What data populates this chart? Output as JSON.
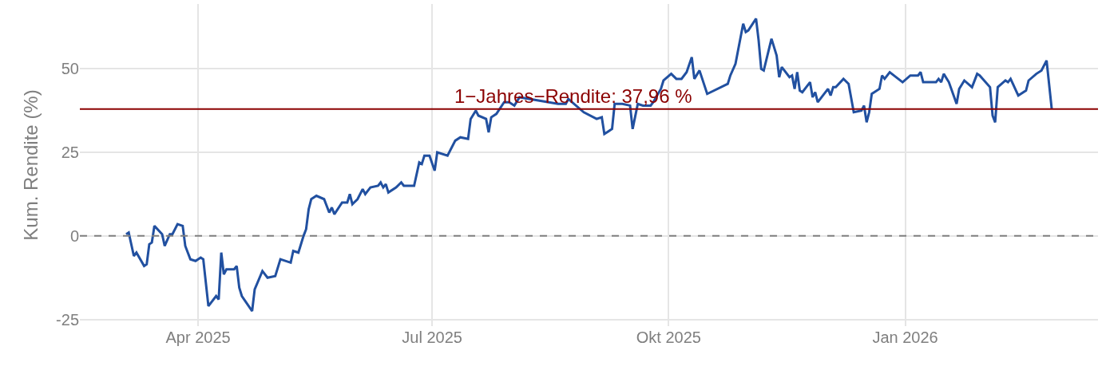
{
  "chart_data": {
    "type": "line",
    "ylabel": "Kum. Rendite (%)",
    "x": [
      "2025-03-04",
      "2025-03-05",
      "2025-03-07",
      "2025-03-08",
      "2025-03-11",
      "2025-03-12",
      "2025-03-13",
      "2025-03-14",
      "2025-03-15",
      "2025-03-18",
      "2025-03-19",
      "2025-03-21",
      "2025-03-22",
      "2025-03-24",
      "2025-03-26",
      "2025-03-27",
      "2025-03-29",
      "2025-03-31",
      "2025-04-02",
      "2025-04-03",
      "2025-04-05",
      "2025-04-08",
      "2025-04-09",
      "2025-04-10",
      "2025-04-11",
      "2025-04-12",
      "2025-04-15",
      "2025-04-16",
      "2025-04-17",
      "2025-04-18",
      "2025-04-22",
      "2025-04-23",
      "2025-04-26",
      "2025-04-28",
      "2025-05-01",
      "2025-05-03",
      "2025-05-07",
      "2025-05-08",
      "2025-05-10",
      "2025-05-12",
      "2025-05-13",
      "2025-05-14",
      "2025-05-15",
      "2025-05-17",
      "2025-05-20",
      "2025-05-22",
      "2025-05-23",
      "2025-05-24",
      "2025-05-27",
      "2025-05-29",
      "2025-05-30",
      "2025-05-31",
      "2025-06-02",
      "2025-06-04",
      "2025-06-05",
      "2025-06-07",
      "2025-06-10",
      "2025-06-11",
      "2025-06-12",
      "2025-06-13",
      "2025-06-14",
      "2025-06-17",
      "2025-06-19",
      "2025-06-20",
      "2025-06-24",
      "2025-06-26",
      "2025-06-27",
      "2025-06-28",
      "2025-06-30",
      "2025-07-02",
      "2025-07-03",
      "2025-07-07",
      "2025-07-10",
      "2025-07-12",
      "2025-07-15",
      "2025-07-16",
      "2025-07-18",
      "2025-07-19",
      "2025-07-22",
      "2025-07-23",
      "2025-07-24",
      "2025-07-26",
      "2025-07-29",
      "2025-07-31",
      "2025-08-02",
      "2025-08-04",
      "2025-08-19",
      "2025-08-22",
      "2025-08-23",
      "2025-08-29",
      "2025-09-03",
      "2025-09-05",
      "2025-09-06",
      "2025-09-09",
      "2025-09-10",
      "2025-09-13",
      "2025-09-16",
      "2025-09-17",
      "2025-09-19",
      "2025-09-21",
      "2025-09-24",
      "2025-09-25",
      "2025-09-28",
      "2025-09-29",
      "2025-10-02",
      "2025-10-04",
      "2025-10-06",
      "2025-10-08",
      "2025-10-10",
      "2025-10-11",
      "2025-10-13",
      "2025-10-16",
      "2025-10-24",
      "2025-10-25",
      "2025-10-27",
      "2025-10-30",
      "2025-10-31",
      "2025-11-01",
      "2025-11-04",
      "2025-11-05",
      "2025-11-06",
      "2025-11-07",
      "2025-11-10",
      "2025-11-12",
      "2025-11-13",
      "2025-11-14",
      "2025-11-17",
      "2025-11-18",
      "2025-11-19",
      "2025-11-20",
      "2025-11-21",
      "2025-11-22",
      "2025-11-25",
      "2025-11-26",
      "2025-11-27",
      "2025-11-28",
      "2025-12-02",
      "2025-12-03",
      "2025-12-04",
      "2025-12-05",
      "2025-12-08",
      "2025-12-10",
      "2025-12-12",
      "2025-12-15",
      "2025-12-16",
      "2025-12-17",
      "2025-12-18",
      "2025-12-19",
      "2025-12-22",
      "2025-12-23",
      "2025-12-24",
      "2025-12-26",
      "2025-12-31",
      "2026-01-03",
      "2026-01-06",
      "2026-01-07",
      "2026-01-08",
      "2026-01-13",
      "2026-01-14",
      "2026-01-15",
      "2026-01-16",
      "2026-01-18",
      "2026-01-21",
      "2026-01-22",
      "2026-01-24",
      "2026-01-27",
      "2026-01-29",
      "2026-01-30",
      "2026-02-03",
      "2026-02-04",
      "2026-02-05",
      "2026-02-06",
      "2026-02-09",
      "2026-02-10",
      "2026-02-11",
      "2026-02-14",
      "2026-02-17",
      "2026-02-18",
      "2026-02-21",
      "2026-02-23",
      "2026-02-25",
      "2026-02-27"
    ],
    "series": [
      {
        "color": "#2150a0",
        "values": [
          0.5,
          1,
          -6,
          -5,
          -9,
          -8.5,
          -2.5,
          -2,
          3,
          0.5,
          -3,
          0.5,
          0.5,
          3.5,
          3,
          -3,
          -7,
          -7.5,
          -6.5,
          -7,
          -21,
          -18,
          -19,
          -5,
          -11.5,
          -10,
          -10,
          -9,
          -15.5,
          -18,
          -22.5,
          -16,
          -10.5,
          -12.5,
          -12,
          -7,
          -8,
          -4.5,
          -5,
          0,
          2,
          8,
          11,
          12,
          11,
          7,
          8.5,
          6.5,
          10,
          10,
          12.5,
          9.5,
          11,
          14,
          12.5,
          14.5,
          15,
          16,
          14.5,
          15.5,
          13,
          14.5,
          16,
          15,
          15,
          22,
          21.5,
          24,
          24,
          19.5,
          25,
          24,
          28.5,
          29.5,
          29,
          35,
          37.5,
          36,
          35,
          31,
          35.5,
          36.5,
          40,
          40,
          39,
          41.5,
          39.5,
          39.5,
          41,
          37,
          35,
          35.5,
          30.5,
          32,
          39.5,
          39.5,
          39,
          32,
          39.5,
          39,
          39,
          40,
          44,
          46.5,
          48.5,
          47,
          47,
          49,
          53.5,
          47,
          49.5,
          42.5,
          45.5,
          48,
          51.5,
          63.5,
          61,
          61.5,
          65,
          58.5,
          50,
          49.5,
          59,
          54,
          47.5,
          50.5,
          47.5,
          48,
          44,
          49,
          43.5,
          43,
          46,
          41.5,
          43,
          40,
          44,
          42,
          44.5,
          44.5,
          47,
          45.5,
          37,
          37.5,
          39,
          34,
          37,
          42.5,
          44,
          48,
          47,
          49,
          46,
          48,
          48,
          49,
          46,
          46,
          47,
          46,
          48.5,
          46,
          39.5,
          44,
          46.5,
          44.5,
          48.5,
          48,
          44.5,
          36,
          34,
          44.5,
          46.5,
          46,
          47,
          42,
          43.5,
          46.5,
          48.5,
          49.5,
          52.5,
          38
        ]
      }
    ],
    "xlim": [
      "2025-02-14",
      "2026-03-17"
    ],
    "xticks": [
      {
        "value": "2025-04-01",
        "label": "Apr 2025"
      },
      {
        "value": "2025-07-01",
        "label": "Jul 2025"
      },
      {
        "value": "2025-10-01",
        "label": "Okt 2025"
      },
      {
        "value": "2026-01-01",
        "label": "Jan 2026"
      }
    ],
    "ylim": [
      -27,
      69.4
    ],
    "yticks": [
      -25,
      0,
      25,
      50
    ],
    "ref_lines": [
      {
        "axis": "y",
        "value": 0,
        "color": "#808080",
        "line_style": "dashed"
      },
      {
        "axis": "y",
        "value": 37.96,
        "color": "#8b0000",
        "line_style": "solid",
        "label": "1−Jahres−Rendite: 37,96 %"
      }
    ],
    "grid": true,
    "line_style": "solid",
    "marker": "none"
  }
}
